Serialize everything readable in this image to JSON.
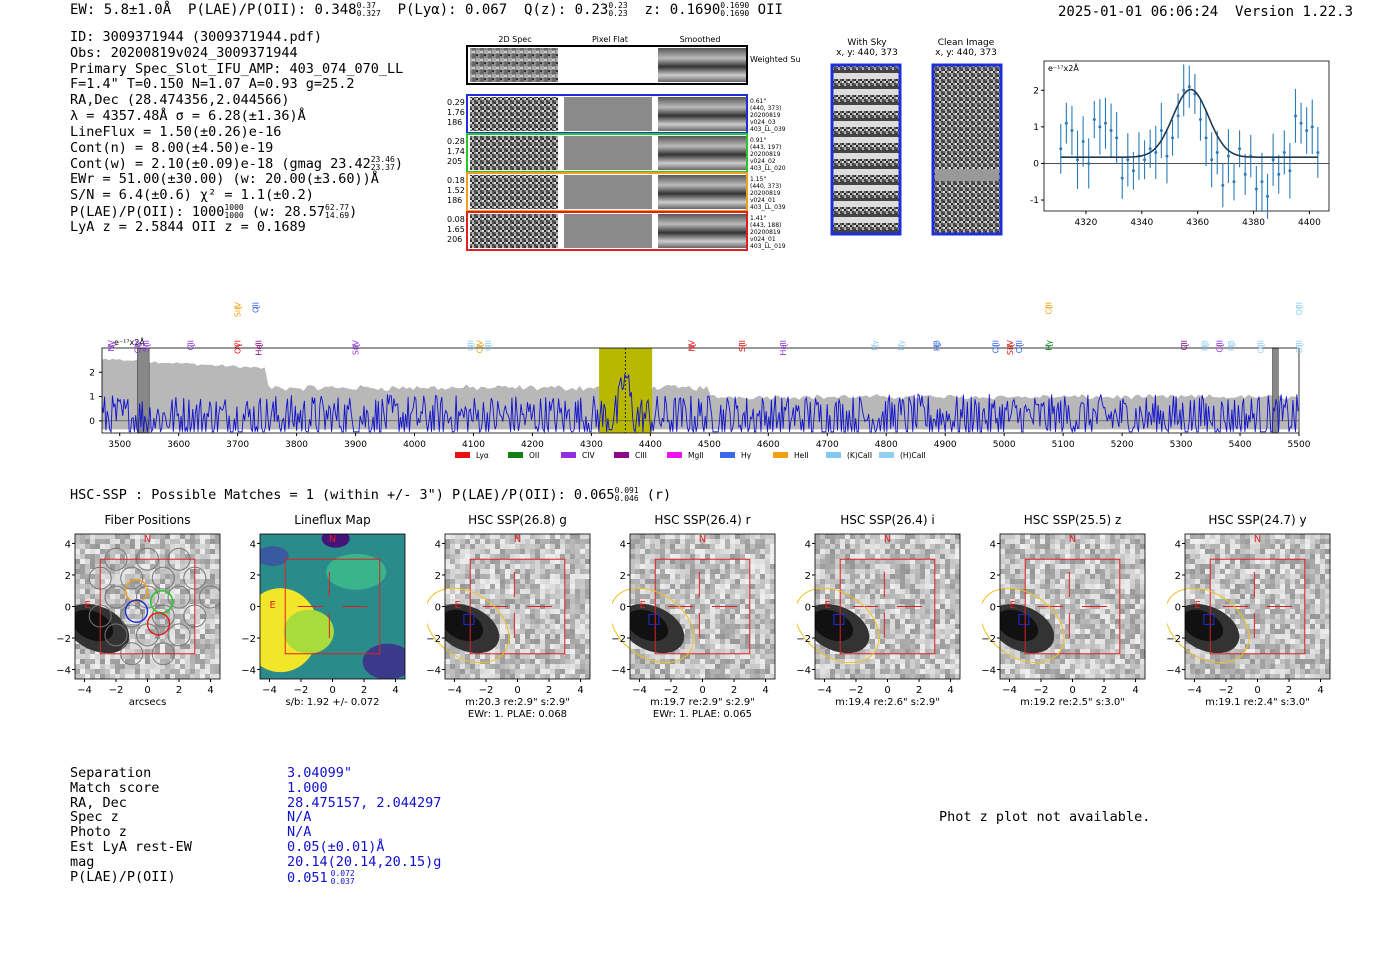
{
  "header": {
    "ew": "EW: 5.8±1.0Å",
    "plae_label": "P(LAE)/P(OII):",
    "plae_val": "0.348",
    "plae_hi": "0.37",
    "plae_lo": "0.327",
    "plya": "P(Lyα): 0.067",
    "qz_label": "Q(z): 0.23",
    "qz_hi": "0.23",
    "qz_lo": "0.23",
    "z_label": "z: 0.1690",
    "z_hi": "0.1690",
    "z_lo": "0.1690",
    "z_line": "OII",
    "timestamp": "2025-01-01 06:06:24",
    "version": "Version 1.22.3"
  },
  "info": {
    "id": "ID: 3009371944 (3009371944.pdf)",
    "obs": "Obs: 20200819v024_3009371944",
    "primary": "Primary Spec_Slot_IFU_AMP: 403_074_070_LL",
    "params": "F=1.4\"  T=0.150  N=1.07  A=0.93  g=25.2",
    "radec": "RA,Dec (28.474356,2.044566)",
    "lambda": "λ = 4357.48Å  σ = 6.28(±1.36)Å",
    "lineflux": "LineFlux = 1.50(±0.26)e-16",
    "contn": "Cont(n) = 8.00(±4.50)e-19",
    "contw": "Cont(w) = 2.10(±0.09)e-18 (gmag 23.42",
    "contw_hi": "23.46",
    "contw_lo": "23.37",
    "ewr": "EWr = 51.00(±30.00) (w: 20.00(±3.60))Å",
    "sn": "S/N = 6.4(±0.6)  χ² = 1.1(±0.2)",
    "plae2": "P(LAE)/P(OII): 1000",
    "plae2_hi": "1000",
    "plae2_lo": "1000",
    "plae2_w": "(w: 28.57",
    "plae2_w_hi": "62.77",
    "plae2_w_lo": "14.69",
    "lyaz": "LyA z = 2.5844  OII z = 0.1689"
  },
  "spec2d": {
    "col_labels": [
      "2D Spec",
      "Pixel Flat",
      "Smoothed"
    ],
    "weighted_sum": "Weighted Sum",
    "rows": [
      {
        "left": [
          "0.29",
          "1.76",
          "186"
        ],
        "right": [
          "0.61\"",
          "(440, 373)",
          "20200819",
          "v024_03",
          "403_LL_039"
        ],
        "color": "#1f2fd8"
      },
      {
        "left": [
          "0.28",
          "1.74",
          "205"
        ],
        "right": [
          "0.91\"",
          "(443, 197)",
          "20200819",
          "v024_02",
          "403_LL_020"
        ],
        "color": "#28c828"
      },
      {
        "left": [
          "0.18",
          "1.52",
          "186"
        ],
        "right": [
          "1.15\"",
          "(440, 373)",
          "20200819",
          "v024_01",
          "403_LL_039"
        ],
        "color": "#f0a020"
      },
      {
        "left": [
          "0.08",
          "1.65",
          "206"
        ],
        "right": [
          "1.41\"",
          "(443, 188)",
          "20200819",
          "v024_01",
          "403_LL_019"
        ],
        "color": "#e02020"
      }
    ]
  },
  "sky": {
    "with_sky_title": "With Sky",
    "with_sky_coords": "x, y: 440, 373",
    "clean_title": "Clean Image",
    "clean_coords": "x, y: 440, 373"
  },
  "chart_data": [
    {
      "type": "line",
      "title": "",
      "ylabel": "e⁻¹⁷x2Å",
      "xlim": [
        4305,
        4407
      ],
      "ylim": [
        -1.3,
        2.8
      ],
      "xticks": [
        4320,
        4340,
        4360,
        4380,
        4400
      ],
      "yticks": [
        -1,
        0,
        1,
        2
      ],
      "fit": {
        "center": 4357.5,
        "sigma": 6.3,
        "amp": 1.85,
        "continuum": 0.17
      },
      "points": [
        {
          "x": 4311,
          "y": 0.4
        },
        {
          "x": 4313,
          "y": 1.1
        },
        {
          "x": 4315,
          "y": 0.9
        },
        {
          "x": 4317,
          "y": 0.1
        },
        {
          "x": 4319,
          "y": 0.6
        },
        {
          "x": 4321,
          "y": 0.0
        },
        {
          "x": 4323,
          "y": 1.2
        },
        {
          "x": 4325,
          "y": 1.0
        },
        {
          "x": 4327,
          "y": 1.1
        },
        {
          "x": 4329,
          "y": 0.9
        },
        {
          "x": 4331,
          "y": 0.7
        },
        {
          "x": 4333,
          "y": -0.4
        },
        {
          "x": 4335,
          "y": 0.1
        },
        {
          "x": 4337,
          "y": -0.2
        },
        {
          "x": 4339,
          "y": 0.2
        },
        {
          "x": 4341,
          "y": 0.1
        },
        {
          "x": 4343,
          "y": 0.4
        },
        {
          "x": 4345,
          "y": 0.3
        },
        {
          "x": 4347,
          "y": 0.9
        },
        {
          "x": 4349,
          "y": 0.2
        },
        {
          "x": 4351,
          "y": 0.7
        },
        {
          "x": 4353,
          "y": 1.3
        },
        {
          "x": 4355,
          "y": 2.0
        },
        {
          "x": 4357,
          "y": 2.1
        },
        {
          "x": 4359,
          "y": 1.9
        },
        {
          "x": 4361,
          "y": 1.2
        },
        {
          "x": 4363,
          "y": 0.7
        },
        {
          "x": 4365,
          "y": 0.1
        },
        {
          "x": 4367,
          "y": 0.3
        },
        {
          "x": 4369,
          "y": -0.6
        },
        {
          "x": 4371,
          "y": 0.2
        },
        {
          "x": 4373,
          "y": -0.5
        },
        {
          "x": 4375,
          "y": 0.4
        },
        {
          "x": 4377,
          "y": -0.3
        },
        {
          "x": 4379,
          "y": 0.2
        },
        {
          "x": 4381,
          "y": -0.7
        },
        {
          "x": 4383,
          "y": -0.5
        },
        {
          "x": 4385,
          "y": -0.9
        },
        {
          "x": 4387,
          "y": 0.1
        },
        {
          "x": 4389,
          "y": -0.3
        },
        {
          "x": 4391,
          "y": 0.3
        },
        {
          "x": 4393,
          "y": -0.2
        },
        {
          "x": 4395,
          "y": 1.3
        },
        {
          "x": 4397,
          "y": 1.1
        },
        {
          "x": 4399,
          "y": 0.9
        },
        {
          "x": 4401,
          "y": 1.0
        },
        {
          "x": 4403,
          "y": 0.3
        }
      ]
    },
    {
      "type": "line",
      "title": "",
      "ylabel": "e⁻¹⁷x2Å",
      "xlim": [
        3470,
        5500
      ],
      "ylim": [
        -0.5,
        3.0
      ],
      "xticks": [
        3500,
        3600,
        3700,
        3800,
        3900,
        4000,
        4100,
        4200,
        4300,
        4400,
        4500,
        4600,
        4700,
        4800,
        4900,
        5000,
        5100,
        5200,
        5300,
        5400,
        5500
      ],
      "yticks": [
        0,
        1,
        2
      ],
      "highlight": [
        4313,
        4403
      ],
      "line_center": 4357.5,
      "legend": [
        {
          "name": "Lyα",
          "color": "#e81010"
        },
        {
          "name": "OII",
          "color": "#108010"
        },
        {
          "name": "CIV",
          "color": "#9030e0"
        },
        {
          "name": "CIII",
          "color": "#8a0a8a"
        },
        {
          "name": "MgII",
          "color": "#f010f0"
        },
        {
          "name": "Hγ",
          "color": "#3a6ae8"
        },
        {
          "name": "HeII",
          "color": "#f0a010"
        },
        {
          "name": "(K)CaII",
          "color": "#80c8f0"
        },
        {
          "name": "(H)CaII",
          "color": "#90d0f0"
        }
      ],
      "line_markers": [
        {
          "label": "NV",
          "x": 3485,
          "row": 1,
          "color": "#9030e0"
        },
        {
          "label": "CIV",
          "x": 3530,
          "row": 1,
          "color": "#9030e0"
        },
        {
          "label": "SiII",
          "x": 3545,
          "row": 1,
          "color": "#9030e0"
        },
        {
          "label": "CII",
          "x": 3620,
          "row": 1,
          "color": "#9030e0"
        },
        {
          "label": "SiIV",
          "x": 3700,
          "row": 0,
          "color": "#f0a010"
        },
        {
          "label": "OII",
          "x": 3730,
          "row": 0,
          "color": "#3a6ae8"
        },
        {
          "label": "OVI",
          "x": 3700,
          "row": 1,
          "color": "#e81010"
        },
        {
          "label": "HeII",
          "x": 3735,
          "row": 1,
          "color": "#8a0a8a"
        },
        {
          "label": "SiIV",
          "x": 3900,
          "row": 1,
          "color": "#9030e0"
        },
        {
          "label": "OII",
          "x": 4095,
          "row": 1,
          "color": "#90d0f0"
        },
        {
          "label": "CIV",
          "x": 4110,
          "row": 1,
          "color": "#f0a010"
        },
        {
          "label": "OII",
          "x": 4125,
          "row": 1,
          "color": "#90d0f0"
        },
        {
          "label": "NV",
          "x": 4470,
          "row": 1,
          "color": "#e81010"
        },
        {
          "label": "SiII",
          "x": 4555,
          "row": 1,
          "color": "#e81010"
        },
        {
          "label": "HeII",
          "x": 4625,
          "row": 1,
          "color": "#9030e0"
        },
        {
          "label": "Hγ",
          "x": 4780,
          "row": 1,
          "color": "#90d0f0"
        },
        {
          "label": "Hγ",
          "x": 4825,
          "row": 1,
          "color": "#90d0f0"
        },
        {
          "label": "Hβ",
          "x": 4885,
          "row": 1,
          "color": "#3a6ae8"
        },
        {
          "label": "OIII",
          "x": 4985,
          "row": 1,
          "color": "#3a6ae8"
        },
        {
          "label": "SiIV",
          "x": 5010,
          "row": 1,
          "color": "#e81010"
        },
        {
          "label": "OIII",
          "x": 5025,
          "row": 1,
          "color": "#3a6ae8"
        },
        {
          "label": "CIII",
          "x": 5075,
          "row": 0,
          "color": "#f0a010"
        },
        {
          "label": "Hγ",
          "x": 5075,
          "row": 1,
          "color": "#108010"
        },
        {
          "label": "CII",
          "x": 5305,
          "row": 1,
          "color": "#8a0a8a"
        },
        {
          "label": "Hβ",
          "x": 5340,
          "row": 1,
          "color": "#90d0f0"
        },
        {
          "label": "CIII",
          "x": 5365,
          "row": 1,
          "color": "#9030e0"
        },
        {
          "label": "Hβ",
          "x": 5385,
          "row": 1,
          "color": "#90d0f0"
        },
        {
          "label": "OIII",
          "x": 5435,
          "row": 1,
          "color": "#90d0f0"
        },
        {
          "label": "OIII",
          "x": 5500,
          "row": 0,
          "color": "#90d0f0"
        },
        {
          "label": "OIII",
          "x": 5500,
          "row": 1,
          "color": "#90d0f0"
        }
      ]
    }
  ],
  "match": {
    "line": "HSC-SSP : Possible Matches = 1 (within +/- 3\")  P(LAE)/P(OII): 0.065",
    "hi": "0.091",
    "lo": "0.046",
    "band": "(r)"
  },
  "cutouts": [
    {
      "title": "Fiber Positions",
      "xlabel": "arcsecs",
      "xlabel2": "",
      "kind": "fiber"
    },
    {
      "title": "Lineflux Map",
      "xlabel": "s/b: 1.92 +/- 0.072",
      "xlabel2": "",
      "kind": "lineflux"
    },
    {
      "title": "HSC SSP(26.8) g",
      "xlabel": "m:20.3  re:2.9\"  s:2.9\"",
      "xlabel2": "EWr: 1. PLAE: 0.068",
      "kind": "hsc"
    },
    {
      "title": "HSC SSP(26.4) r",
      "xlabel": "m:19.7  re:2.9\"  s:2.9\"",
      "xlabel2": "EWr: 1. PLAE: 0.065",
      "kind": "hsc"
    },
    {
      "title": "HSC SSP(26.4) i",
      "xlabel": "m:19.4  re:2.6\"  s:2.9\"",
      "xlabel2": "",
      "kind": "hsc"
    },
    {
      "title": "HSC SSP(25.5) z",
      "xlabel": "m:19.2  re:2.5\"  s:3.0\"",
      "xlabel2": "",
      "kind": "hsc"
    },
    {
      "title": "HSC SSP(24.7) y",
      "xlabel": "m:19.1  re:2.4\"  s:3.0\"",
      "xlabel2": "",
      "kind": "hsc"
    }
  ],
  "cutout_axis": {
    "ticks": [
      "−4",
      "−2",
      "0",
      "2",
      "4"
    ],
    "north": "N",
    "east": "E"
  },
  "table": {
    "labels": [
      "Separation",
      "Match score",
      "RA, Dec",
      "Spec z",
      "Photo z",
      "Est LyA rest-EW",
      "mag",
      "P(LAE)/P(OII)"
    ],
    "values": [
      "3.04099\"",
      "1.000",
      "28.475157, 2.044297",
      "N/A",
      "N/A",
      "0.05(±0.01)Å",
      "20.14(20.14,20.15)g",
      "0.051"
    ],
    "plae_hi": "0.072",
    "plae_lo": "0.037"
  },
  "phot_z": "Phot z plot not available."
}
